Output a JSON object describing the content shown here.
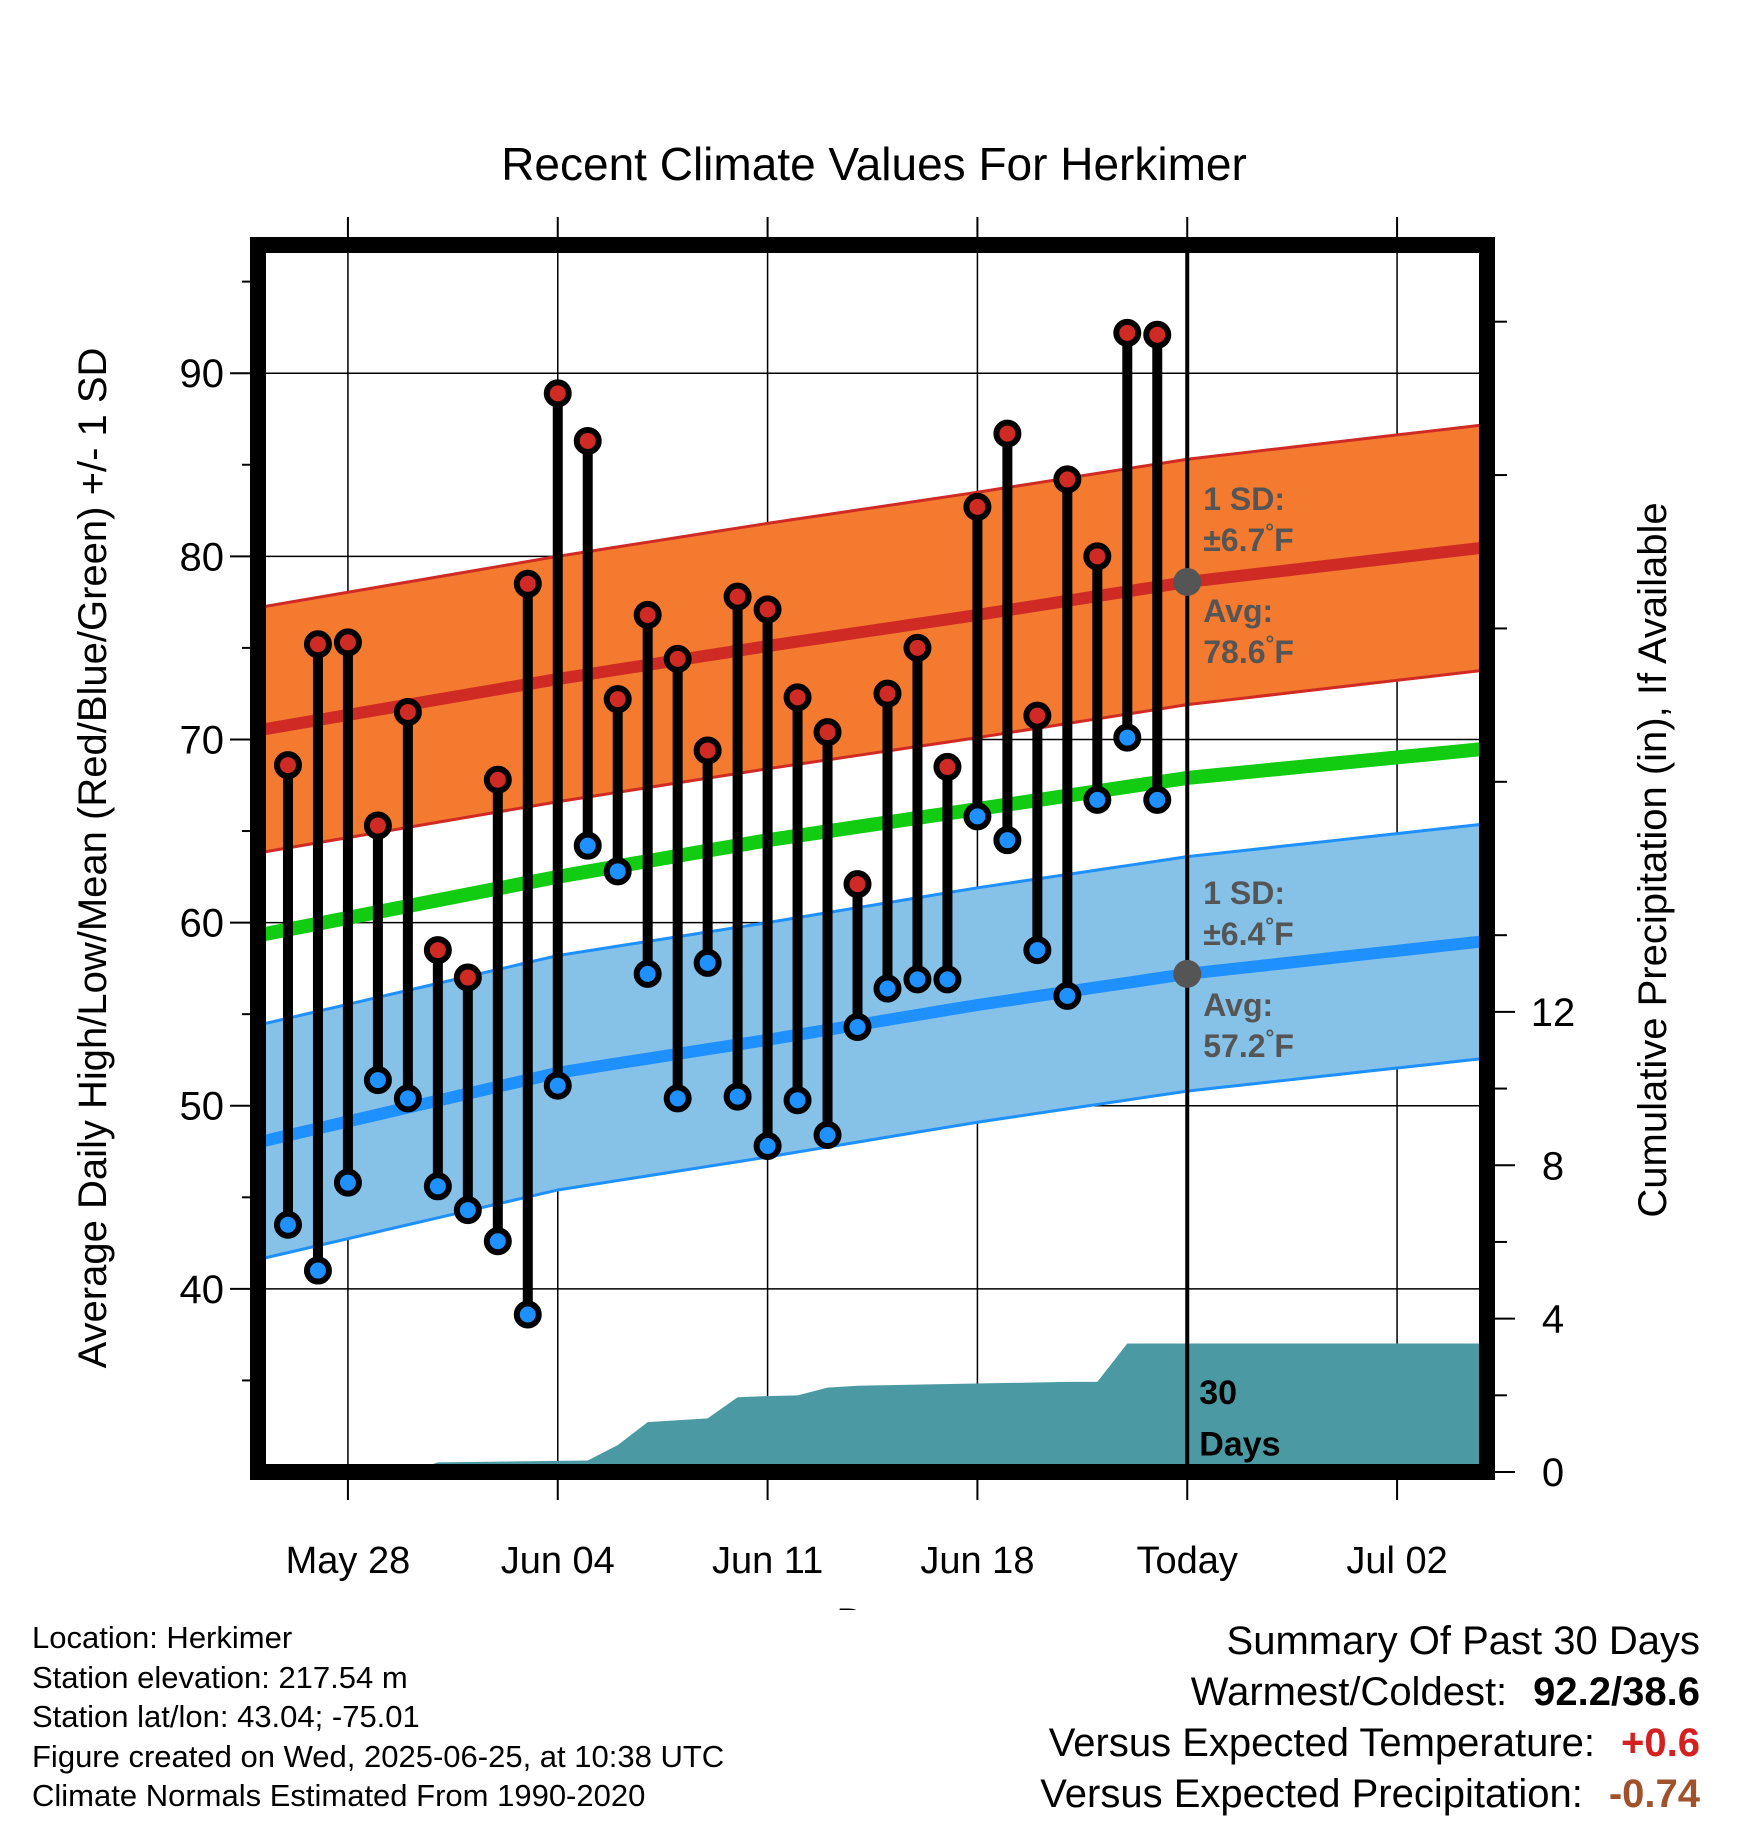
{
  "chart_data": {
    "type": "range-line-area",
    "title": "Recent Climate Values For Herkimer",
    "xlabel": "Day",
    "ylabel_left": "Average Daily High/Low/Mean (Red/Blue/Green) +/- 1 SD",
    "ylabel_right": "Cumulative Precipitation (in), If Available",
    "x_range": [
      "2025-05-25",
      "2025-07-05"
    ],
    "ylim_left": [
      30,
      97
    ],
    "ylim_right": [
      0,
      32
    ],
    "x_ticks": [
      {
        "date": "2025-05-28",
        "label": "May 28"
      },
      {
        "date": "2025-06-04",
        "label": "Jun 04"
      },
      {
        "date": "2025-06-11",
        "label": "Jun 11"
      },
      {
        "date": "2025-06-18",
        "label": "Jun 18"
      },
      {
        "date": "2025-06-25",
        "label": "Today"
      },
      {
        "date": "2025-07-02",
        "label": "Jul 02"
      }
    ],
    "y_ticks_left": [
      "40",
      "50",
      "60",
      "70",
      "80",
      "90"
    ],
    "y_ticks_right": [
      "0",
      "4",
      "8",
      "12"
    ],
    "grid": true,
    "today": "2025-06-25",
    "today_label": [
      "30",
      "Days"
    ],
    "daily": {
      "dates": [
        "2025-05-26",
        "2025-05-27",
        "2025-05-28",
        "2025-05-29",
        "2025-05-30",
        "2025-05-31",
        "2025-06-01",
        "2025-06-02",
        "2025-06-03",
        "2025-06-04",
        "2025-06-05",
        "2025-06-06",
        "2025-06-07",
        "2025-06-08",
        "2025-06-09",
        "2025-06-10",
        "2025-06-11",
        "2025-06-12",
        "2025-06-13",
        "2025-06-14",
        "2025-06-15",
        "2025-06-16",
        "2025-06-17",
        "2025-06-18",
        "2025-06-19",
        "2025-06-20",
        "2025-06-21",
        "2025-06-22",
        "2025-06-23",
        "2025-06-24"
      ],
      "high": [
        68.6,
        75.2,
        75.3,
        65.3,
        71.5,
        58.5,
        57.0,
        67.8,
        78.5,
        88.9,
        86.3,
        72.2,
        76.8,
        74.4,
        69.4,
        77.8,
        77.1,
        72.3,
        70.4,
        62.1,
        72.5,
        75.0,
        68.5,
        82.7,
        86.7,
        71.3,
        84.2,
        80.0,
        92.2,
        92.1
      ],
      "low": [
        43.5,
        41.0,
        45.8,
        51.4,
        50.4,
        45.6,
        44.3,
        42.6,
        38.6,
        51.1,
        64.2,
        62.8,
        57.2,
        50.4,
        57.8,
        50.5,
        47.8,
        50.3,
        48.4,
        54.3,
        56.4,
        56.9,
        56.9,
        65.8,
        64.5,
        58.5,
        56.0,
        66.7,
        70.1,
        66.7
      ]
    },
    "normals": {
      "dates": [
        "2025-05-25",
        "2025-06-04",
        "2025-06-11",
        "2025-06-18",
        "2025-06-25",
        "2025-07-05"
      ],
      "avg_high": [
        70.5,
        73.3,
        75.1,
        76.8,
        78.6,
        80.5
      ],
      "avg_low": [
        48.0,
        51.8,
        53.6,
        55.5,
        57.2,
        59.0
      ],
      "avg_mean": [
        59.3,
        62.5,
        64.5,
        66.2,
        67.9,
        69.5
      ],
      "sd_high": 6.7,
      "sd_low": 6.4
    },
    "precip": {
      "dates": [
        "2025-05-30",
        "2025-05-31",
        "2025-06-05",
        "2025-06-06",
        "2025-06-07",
        "2025-06-08",
        "2025-06-09",
        "2025-06-10",
        "2025-06-11",
        "2025-06-12",
        "2025-06-13",
        "2025-06-14",
        "2025-06-21",
        "2025-06-22",
        "2025-06-23",
        "2025-07-05"
      ],
      "cumulative": [
        0.0,
        0.25,
        0.3,
        0.7,
        1.3,
        1.35,
        1.4,
        1.95,
        1.98,
        2.0,
        2.2,
        2.25,
        2.35,
        2.35,
        3.35,
        3.35
      ]
    },
    "annotations": {
      "high_sd_label": [
        "1 SD:",
        "±6.7",
        "°",
        "F"
      ],
      "high_avg_label": [
        "Avg:",
        "78.6",
        "°",
        "F"
      ],
      "low_sd_label": [
        "1 SD:",
        "±6.4",
        "°",
        "F"
      ],
      "low_avg_label": [
        "Avg:",
        "57.2",
        "°",
        "F"
      ]
    },
    "colors": {
      "high": "#cf2b24",
      "high_band": "#f47a30",
      "low": "#1e90ff",
      "low_band": "#86c1e8",
      "mean": "#11cc11",
      "precip": "#4b9aa3",
      "annotation": "#555555"
    }
  },
  "info": {
    "location": "Location: Herkimer",
    "elevation": "Station elevation: 217.54 m",
    "latlon": "Station lat/lon: 43.04; -75.01",
    "created": "Figure created on Wed, 2025-06-25, at 10:38 UTC",
    "normals": "Climate Normals Estimated From 1990-2020"
  },
  "summary": {
    "heading": "Summary Of Past 30 Days",
    "warmest_label": "Warmest/Coldest:",
    "warmest_value": "92.2/38.6",
    "temp_label": "Versus Expected Temperature:",
    "temp_value": "+0.6",
    "precip_label": "Versus Expected Precipitation:",
    "precip_value": "-0.74"
  }
}
